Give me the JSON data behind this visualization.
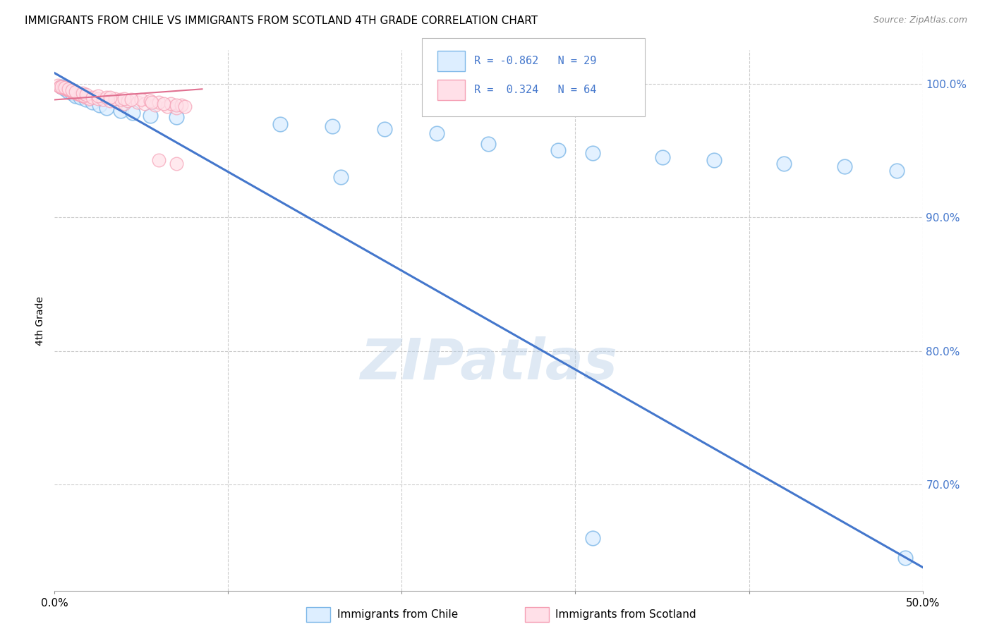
{
  "title": "IMMIGRANTS FROM CHILE VS IMMIGRANTS FROM SCOTLAND 4TH GRADE CORRELATION CHART",
  "source": "Source: ZipAtlas.com",
  "ylabel": "4th Grade",
  "xlim": [
    0.0,
    0.5
  ],
  "ylim": [
    0.62,
    1.025
  ],
  "yticks": [
    0.7,
    0.8,
    0.9,
    1.0
  ],
  "ytick_labels": [
    "70.0%",
    "80.0%",
    "90.0%",
    "100.0%"
  ],
  "xticks": [
    0.0,
    0.1,
    0.2,
    0.3,
    0.4,
    0.5
  ],
  "xtick_labels": [
    "0.0%",
    "",
    "",
    "",
    "",
    "50.0%"
  ],
  "background_color": "#ffffff",
  "grid_color": "#cccccc",
  "blue_color": "#7eb8e8",
  "pink_color": "#f5a0b5",
  "line_color": "#4477cc",
  "pink_line_color": "#e07090",
  "legend_R_blue": "-0.862",
  "legend_N_blue": "29",
  "legend_R_pink": "0.324",
  "legend_N_pink": "64",
  "watermark": "ZIPatlas",
  "blue_points": [
    [
      0.004,
      0.998
    ],
    [
      0.006,
      0.996
    ],
    [
      0.008,
      0.994
    ],
    [
      0.01,
      0.993
    ],
    [
      0.012,
      0.991
    ],
    [
      0.015,
      0.99
    ],
    [
      0.018,
      0.988
    ],
    [
      0.022,
      0.986
    ],
    [
      0.026,
      0.984
    ],
    [
      0.03,
      0.982
    ],
    [
      0.038,
      0.98
    ],
    [
      0.045,
      0.978
    ],
    [
      0.055,
      0.976
    ],
    [
      0.07,
      0.975
    ],
    [
      0.13,
      0.97
    ],
    [
      0.16,
      0.968
    ],
    [
      0.19,
      0.966
    ],
    [
      0.22,
      0.963
    ],
    [
      0.165,
      0.93
    ],
    [
      0.25,
      0.955
    ],
    [
      0.29,
      0.95
    ],
    [
      0.31,
      0.948
    ],
    [
      0.35,
      0.945
    ],
    [
      0.38,
      0.943
    ],
    [
      0.42,
      0.94
    ],
    [
      0.455,
      0.938
    ],
    [
      0.485,
      0.935
    ],
    [
      0.31,
      0.66
    ],
    [
      0.49,
      0.645
    ]
  ],
  "pink_points": [
    [
      0.002,
      0.999
    ],
    [
      0.003,
      0.998
    ],
    [
      0.004,
      0.997
    ],
    [
      0.005,
      0.997
    ],
    [
      0.006,
      0.996
    ],
    [
      0.007,
      0.996
    ],
    [
      0.008,
      0.995
    ],
    [
      0.009,
      0.995
    ],
    [
      0.01,
      0.994
    ],
    [
      0.011,
      0.994
    ],
    [
      0.012,
      0.993
    ],
    [
      0.013,
      0.993
    ],
    [
      0.014,
      0.992
    ],
    [
      0.015,
      0.992
    ],
    [
      0.016,
      0.991
    ],
    [
      0.017,
      0.991
    ],
    [
      0.018,
      0.99
    ],
    [
      0.019,
      0.99
    ],
    [
      0.02,
      0.989
    ],
    [
      0.003,
      0.998
    ],
    [
      0.005,
      0.997
    ],
    [
      0.007,
      0.996
    ],
    [
      0.009,
      0.995
    ],
    [
      0.011,
      0.994
    ],
    [
      0.013,
      0.993
    ],
    [
      0.015,
      0.992
    ],
    [
      0.017,
      0.991
    ],
    [
      0.004,
      0.998
    ],
    [
      0.006,
      0.997
    ],
    [
      0.008,
      0.996
    ],
    [
      0.01,
      0.995
    ],
    [
      0.012,
      0.994
    ],
    [
      0.016,
      0.993
    ],
    [
      0.018,
      0.992
    ],
    [
      0.022,
      0.99
    ],
    [
      0.025,
      0.989
    ],
    [
      0.028,
      0.988
    ],
    [
      0.032,
      0.987
    ],
    [
      0.036,
      0.986
    ],
    [
      0.04,
      0.985
    ],
    [
      0.025,
      0.991
    ],
    [
      0.03,
      0.99
    ],
    [
      0.035,
      0.989
    ],
    [
      0.038,
      0.988
    ],
    [
      0.042,
      0.987
    ],
    [
      0.048,
      0.986
    ],
    [
      0.052,
      0.985
    ],
    [
      0.058,
      0.984
    ],
    [
      0.065,
      0.983
    ],
    [
      0.07,
      0.982
    ],
    [
      0.032,
      0.99
    ],
    [
      0.04,
      0.989
    ],
    [
      0.05,
      0.988
    ],
    [
      0.055,
      0.987
    ],
    [
      0.06,
      0.986
    ],
    [
      0.067,
      0.985
    ],
    [
      0.073,
      0.984
    ],
    [
      0.044,
      0.988
    ],
    [
      0.056,
      0.986
    ],
    [
      0.063,
      0.985
    ],
    [
      0.07,
      0.984
    ],
    [
      0.075,
      0.983
    ],
    [
      0.06,
      0.943
    ],
    [
      0.07,
      0.94
    ]
  ],
  "blue_trend_x": [
    0.0,
    0.5
  ],
  "blue_trend_y": [
    1.008,
    0.638
  ],
  "pink_trend_x": [
    0.0,
    0.085
  ],
  "pink_trend_y": [
    0.988,
    0.996
  ]
}
